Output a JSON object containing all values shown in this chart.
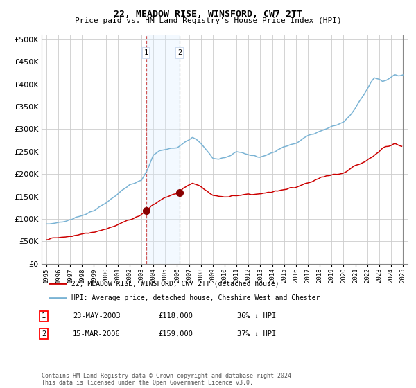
{
  "title": "22, MEADOW RISE, WINSFORD, CW7 2TT",
  "subtitle": "Price paid vs. HM Land Registry's House Price Index (HPI)",
  "ytick_values": [
    0,
    50000,
    100000,
    150000,
    200000,
    250000,
    300000,
    350000,
    400000,
    450000,
    500000
  ],
  "ylim": [
    0,
    510000
  ],
  "x_start_year": 1995,
  "x_end_year": 2025,
  "hpi_color": "#7ab3d4",
  "price_color": "#cc0000",
  "transaction1_year": 2003.38,
  "transaction1_price": 118000,
  "transaction2_year": 2006.21,
  "transaction2_price": 159000,
  "transaction1_date": "23-MAY-2003",
  "transaction2_date": "15-MAR-2006",
  "transaction1_hpi_pct": "36%",
  "transaction2_hpi_pct": "37%",
  "legend_line1": "22, MEADOW RISE, WINSFORD, CW7 2TT (detached house)",
  "legend_line2": "HPI: Average price, detached house, Cheshire West and Chester",
  "footer": "Contains HM Land Registry data © Crown copyright and database right 2024.\nThis data is licensed under the Open Government Licence v3.0.",
  "background_color": "#ffffff",
  "grid_color": "#cccccc",
  "shade_color": "#ddeeff",
  "label_box_color": "#c8d8ee"
}
